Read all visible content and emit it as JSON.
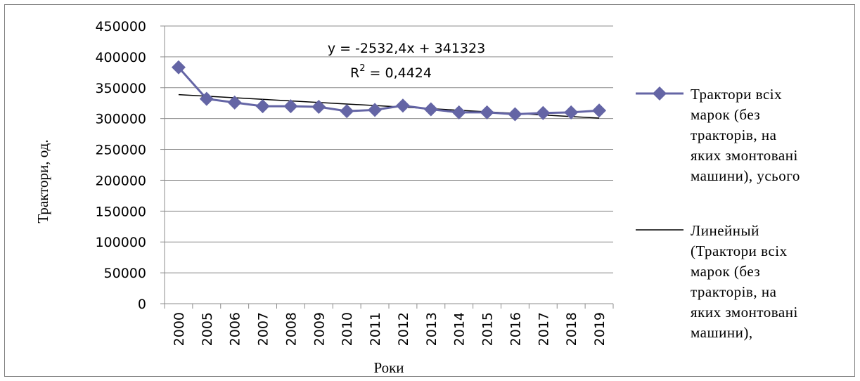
{
  "chart_data": {
    "type": "line",
    "xlabel": "Роки",
    "ylabel": "Трактори, од.",
    "categories": [
      "2000",
      "2005",
      "2006",
      "2007",
      "2008",
      "2009",
      "2010",
      "2011",
      "2012",
      "2013",
      "2014",
      "2015",
      "2016",
      "2017",
      "2018",
      "2019"
    ],
    "y_ticks": [
      "0",
      "50000",
      "100000",
      "150000",
      "200000",
      "250000",
      "300000",
      "350000",
      "400000",
      "450000"
    ],
    "ylim": [
      0,
      450000
    ],
    "grid": "horizontal",
    "legend_position": "right",
    "series": [
      {
        "name": "Трактори всіх марок (без тракторів, на яких змонтовані машини), усього",
        "legend_lines": [
          "Трактори всіх",
          "марок (без",
          "тракторів, на",
          "яких змонтовані",
          "машини), усього"
        ],
        "color": "#6465a5",
        "marker": "diamond",
        "values": [
          383000,
          332000,
          326000,
          320000,
          320000,
          319000,
          312000,
          314000,
          321000,
          315000,
          310000,
          310000,
          307000,
          309000,
          310000,
          313000
        ]
      },
      {
        "name": "Линейный (Трактори всіх марок (без тракторів, на яких змонтовані машини),",
        "legend_lines": [
          "Линейный",
          "(Трактори всіх",
          "марок (без",
          "тракторів, на",
          "яких змонтовані",
          "машини),"
        ],
        "color": "#000000",
        "type": "trendline",
        "slope": -2532.4,
        "intercept": 341323
      }
    ],
    "annotations": {
      "equation": "y = -2532,4x + 341323",
      "r2_label": "R",
      "r2_sup": "2",
      "r2_value": " = 0,4424"
    }
  }
}
